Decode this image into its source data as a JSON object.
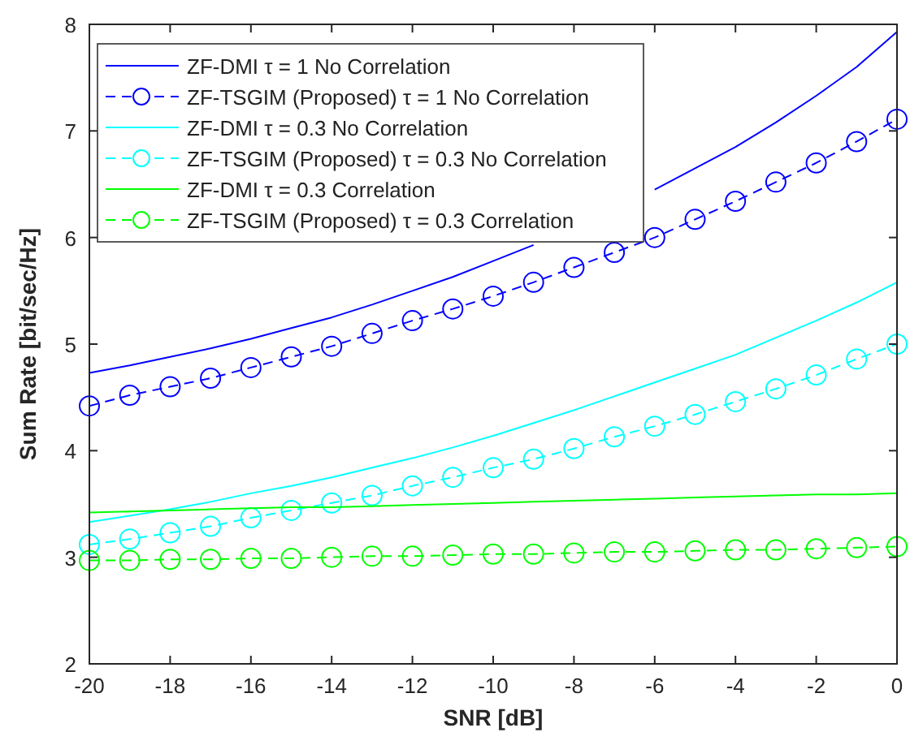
{
  "chart_data": {
    "type": "line",
    "xlabel": "SNR [dB]",
    "ylabel": "Sum Rate [bit/sec/Hz]",
    "x": [
      -20,
      -19,
      -18,
      -17,
      -16,
      -15,
      -14,
      -13,
      -12,
      -11,
      -10,
      -9,
      -8,
      -7,
      -6,
      -5,
      -4,
      -3,
      -2,
      -1,
      0
    ],
    "xlim": [
      -20,
      0
    ],
    "xticks": [
      -20,
      -18,
      -16,
      -14,
      -12,
      -10,
      -8,
      -6,
      -4,
      -2,
      0
    ],
    "ylim": [
      2,
      8
    ],
    "yticks": [
      2,
      3,
      4,
      5,
      6,
      7,
      8
    ],
    "grid": false,
    "legend": "top left",
    "series": [
      {
        "name": "ZF-DMI τ = 1 No Correlation",
        "color": "#0000ff",
        "marker": "none",
        "line_style": "solid",
        "values": [
          4.73,
          4.8,
          4.88,
          4.96,
          5.05,
          5.15,
          5.25,
          5.37,
          5.5,
          5.63,
          5.78,
          5.93,
          null,
          null,
          6.45,
          6.65,
          6.85,
          7.08,
          7.33,
          7.6,
          7.93
        ]
      },
      {
        "name": "ZF-TSGIM (Proposed) τ = 1 No Correlation",
        "color": "#0000ff",
        "marker": "circle",
        "line_style": "dashed",
        "values": [
          4.42,
          4.52,
          4.6,
          4.68,
          4.78,
          4.88,
          4.98,
          5.1,
          5.22,
          5.33,
          5.45,
          5.58,
          5.72,
          5.86,
          6.0,
          6.17,
          6.34,
          6.52,
          6.7,
          6.9,
          7.11
        ]
      },
      {
        "name": "ZF-DMI τ = 0.3 No Correlation",
        "color": "#00ffff",
        "marker": "none",
        "line_style": "solid",
        "values": [
          3.33,
          3.39,
          3.45,
          3.52,
          3.6,
          3.67,
          3.75,
          3.84,
          3.93,
          4.03,
          4.14,
          4.26,
          4.38,
          4.51,
          4.64,
          4.77,
          4.9,
          5.06,
          5.22,
          5.39,
          5.58
        ]
      },
      {
        "name": "ZF-TSGIM (Proposed) τ = 0.3 No Correlation",
        "color": "#00ffff",
        "marker": "circle",
        "line_style": "dashed",
        "values": [
          3.12,
          3.17,
          3.23,
          3.29,
          3.37,
          3.44,
          3.51,
          3.58,
          3.67,
          3.75,
          3.84,
          3.92,
          4.02,
          4.13,
          4.23,
          4.34,
          4.46,
          4.58,
          4.71,
          4.86,
          5.0
        ]
      },
      {
        "name": "ZF-DMI τ = 0.3 Correlation",
        "color": "#00ff00",
        "marker": "none",
        "line_style": "solid",
        "values": [
          3.42,
          3.43,
          3.44,
          3.45,
          3.46,
          3.47,
          3.47,
          3.48,
          3.49,
          3.5,
          3.51,
          3.52,
          3.53,
          3.54,
          3.55,
          3.56,
          3.57,
          3.58,
          3.59,
          3.59,
          3.6
        ]
      },
      {
        "name": "ZF-TSGIM (Proposed) τ = 0.3 Correlation",
        "color": "#00ff00",
        "marker": "circle",
        "line_style": "dashed",
        "values": [
          2.97,
          2.97,
          2.98,
          2.98,
          2.99,
          2.99,
          3.0,
          3.01,
          3.01,
          3.02,
          3.03,
          3.03,
          3.04,
          3.05,
          3.05,
          3.06,
          3.07,
          3.07,
          3.08,
          3.09,
          3.1
        ]
      }
    ]
  }
}
